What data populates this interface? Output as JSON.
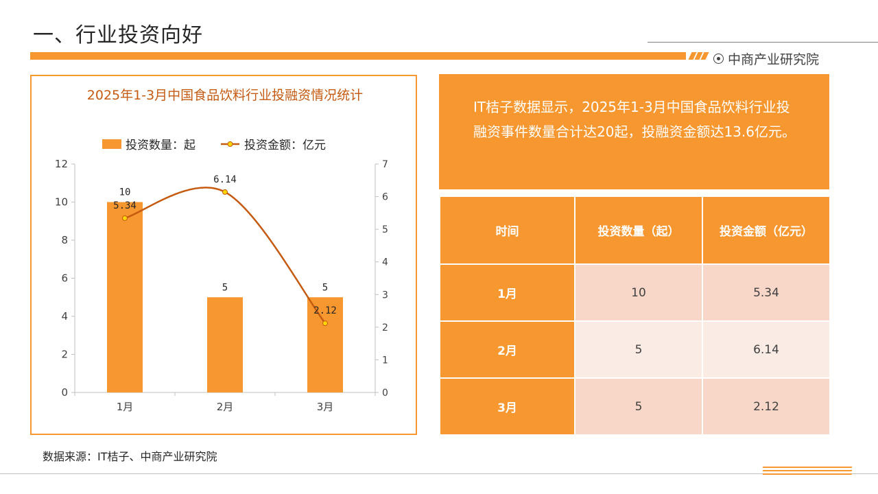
{
  "header": {
    "title": "一、行业投资向好",
    "brand": "中商产业研究院",
    "accent_color": "#f7972f"
  },
  "summary": {
    "text": "IT桔子数据显示，2025年1-3月中国食品饮料行业投融资事件数量合计达20起，投融资金额达13.6亿元。"
  },
  "table": {
    "headers": [
      "时间",
      "投资数量（起）",
      "投资金额（亿元）"
    ],
    "rows": [
      [
        "1月",
        "10",
        "5.34"
      ],
      [
        "2月",
        "5",
        "6.14"
      ],
      [
        "3月",
        "5",
        "2.12"
      ]
    ]
  },
  "source": "数据来源：IT桔子、中商产业研究院",
  "chart_data": {
    "type": "bar",
    "title": "2025年1-3月中国食品饮料行业投融资情况统计",
    "categories": [
      "1月",
      "2月",
      "3月"
    ],
    "series": [
      {
        "name": "投资数量：起",
        "type": "bar",
        "axis": "left",
        "values": [
          10,
          5,
          5
        ],
        "labels": [
          "10",
          "5",
          "5"
        ],
        "color": "#f7972f"
      },
      {
        "name": "投资金额：亿元",
        "type": "line",
        "axis": "right",
        "values": [
          5.34,
          6.14,
          2.12
        ],
        "labels": [
          "5.34",
          "6.14",
          "2.12"
        ],
        "color": "#c55a11",
        "marker_color": "#ffd700"
      }
    ],
    "ylim_left": [
      0,
      12
    ],
    "yticks_left": [
      "0",
      "2",
      "4",
      "6",
      "8",
      "10",
      "12"
    ],
    "ylim_right": [
      0,
      7
    ],
    "yticks_right": [
      "0",
      "1",
      "2",
      "3",
      "4",
      "5",
      "6",
      "7"
    ],
    "legend": "top",
    "grid": false
  }
}
